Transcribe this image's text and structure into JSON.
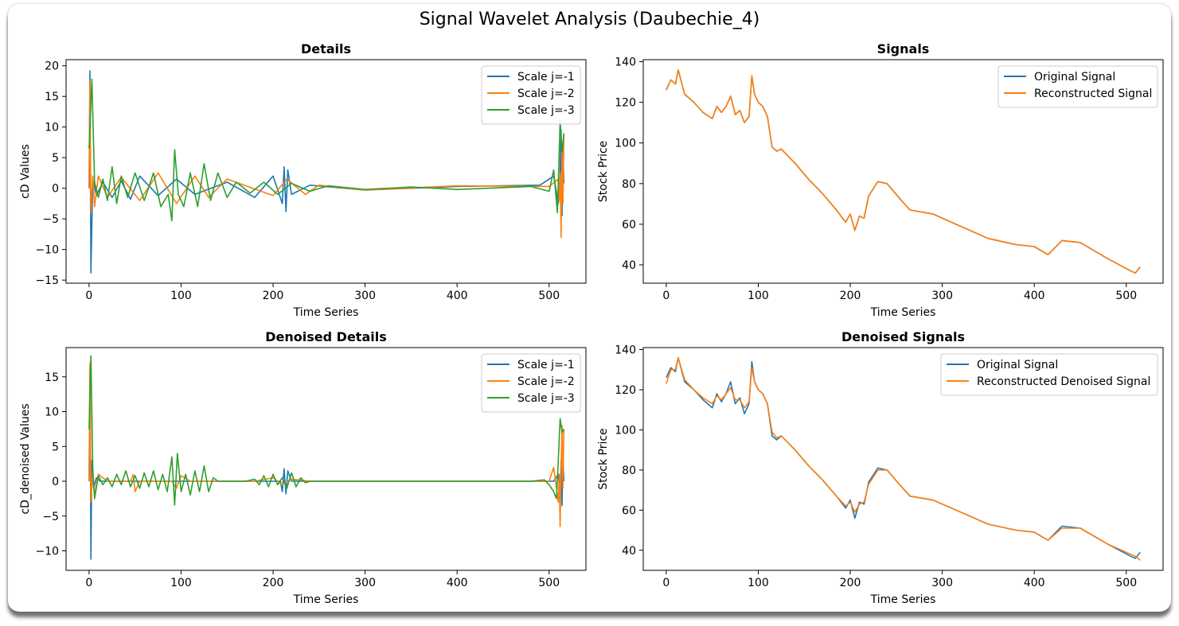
{
  "suptitle": "Signal Wavelet Analysis (Daubechie_4)",
  "colors": {
    "blue": "#1f77b4",
    "orange": "#ff7f0e",
    "green": "#2ca02c"
  },
  "chart_data": [
    {
      "type": "line",
      "title": "Details",
      "xlabel": "Time Series",
      "ylabel": "cD Values",
      "xlim": [
        -25,
        540
      ],
      "ylim": [
        -15.5,
        21.0
      ],
      "xticks": [
        0,
        100,
        200,
        300,
        400,
        500
      ],
      "yticks": [
        -15,
        -10,
        -5,
        0,
        5,
        10,
        15,
        20
      ],
      "ytick_labels": [
        "−15",
        "−10",
        "−5",
        "0",
        "5",
        "10",
        "15",
        "20"
      ],
      "legend_position": "top-right",
      "series": [
        {
          "name": "Scale j=-1",
          "color": "#1f77b4",
          "x": [
            0,
            1,
            2,
            4,
            8,
            15,
            25,
            35,
            45,
            55,
            75,
            95,
            115,
            150,
            180,
            200,
            210,
            212,
            214,
            216,
            220,
            240,
            300,
            400,
            490,
            505,
            510,
            512,
            513,
            514,
            515,
            516
          ],
          "y": [
            0,
            19.2,
            -13.8,
            1.5,
            -1.2,
            1.0,
            -1.5,
            1.2,
            -1.8,
            2.0,
            -1.2,
            1.5,
            -1.0,
            1.0,
            -1.5,
            2.0,
            -2.5,
            3.5,
            -3.8,
            3.0,
            -1.0,
            0.5,
            -0.3,
            0.3,
            0.5,
            2.0,
            -2.5,
            2.3,
            9.5,
            -4.5,
            7.0,
            0.8
          ]
        },
        {
          "name": "Scale j=-2",
          "color": "#ff7f0e",
          "x": [
            0,
            1,
            2,
            4,
            6,
            10,
            20,
            35,
            55,
            75,
            95,
            115,
            130,
            150,
            200,
            215,
            235,
            250,
            300,
            400,
            500,
            510,
            511,
            512,
            513,
            514,
            515,
            516
          ],
          "y": [
            0,
            17.5,
            -4.0,
            2.0,
            -3.0,
            2.0,
            -1.5,
            1.8,
            -2.0,
            2.5,
            -2.5,
            2.0,
            -1.5,
            1.5,
            -1.2,
            1.5,
            -1.0,
            0.5,
            -0.3,
            0.4,
            0.3,
            1.5,
            -2.0,
            2.5,
            -8.0,
            6.5,
            -2.5,
            8.8
          ]
        },
        {
          "name": "Scale j=-3",
          "color": "#2ca02c",
          "x": [
            0,
            3,
            6,
            10,
            15,
            20,
            25,
            30,
            35,
            42,
            50,
            60,
            70,
            78,
            86,
            90,
            93,
            97,
            103,
            110,
            118,
            125,
            132,
            140,
            150,
            160,
            175,
            190,
            205,
            220,
            240,
            260,
            300,
            350,
            400,
            480,
            500,
            505,
            509,
            512,
            514,
            516
          ],
          "y": [
            6.5,
            17.8,
            1.0,
            -1.5,
            1.5,
            -2.0,
            3.5,
            -2.5,
            2.0,
            -1.5,
            2.5,
            -2.0,
            2.5,
            -3.0,
            -1.0,
            -5.3,
            6.3,
            -1.0,
            -3.0,
            2.5,
            -3.0,
            4.0,
            -2.0,
            2.5,
            -1.5,
            1.0,
            -0.8,
            1.0,
            -1.0,
            0.8,
            -0.5,
            0.4,
            -0.2,
            0.2,
            -0.2,
            0.3,
            -0.5,
            3.0,
            -4.0,
            11.0,
            6.0,
            9.0
          ]
        }
      ]
    },
    {
      "type": "line",
      "title": "Signals",
      "xlabel": "Time Series",
      "ylabel": "Stock Price",
      "xlim": [
        -25,
        540
      ],
      "ylim": [
        31,
        141
      ],
      "xticks": [
        0,
        100,
        200,
        300,
        400,
        500
      ],
      "yticks": [
        40,
        60,
        80,
        100,
        120,
        140
      ],
      "ytick_labels": [
        "40",
        "60",
        "80",
        "100",
        "120",
        "140"
      ],
      "legend_position": "top-right",
      "series": [
        {
          "name": "Original Signal",
          "color": "#1f77b4",
          "x": [
            0,
            5,
            10,
            13,
            20,
            30,
            40,
            50,
            55,
            60,
            65,
            70,
            75,
            80,
            85,
            90,
            93,
            96,
            100,
            105,
            110,
            115,
            120,
            125,
            140,
            155,
            170,
            185,
            195,
            200,
            205,
            210,
            215,
            220,
            230,
            240,
            255,
            265,
            290,
            320,
            350,
            380,
            400,
            415,
            430,
            450,
            480,
            505,
            510,
            515
          ],
          "y": [
            126,
            131,
            129,
            136,
            124,
            120,
            115,
            112,
            118,
            115,
            118,
            123,
            114,
            116,
            110,
            113,
            133,
            124,
            120,
            118,
            113,
            98,
            96,
            97,
            90,
            82,
            75,
            67,
            61,
            65,
            57,
            64,
            63,
            74,
            81,
            80,
            72,
            67,
            65,
            59,
            53,
            50,
            49,
            45,
            52,
            51,
            43,
            37,
            36,
            39
          ]
        },
        {
          "name": "Reconstructed Signal",
          "color": "#ff7f0e",
          "x": [
            0,
            5,
            10,
            13,
            20,
            30,
            40,
            50,
            55,
            60,
            65,
            70,
            75,
            80,
            85,
            90,
            93,
            96,
            100,
            105,
            110,
            115,
            120,
            125,
            140,
            155,
            170,
            185,
            195,
            200,
            205,
            210,
            215,
            220,
            230,
            240,
            255,
            265,
            290,
            320,
            350,
            380,
            400,
            415,
            430,
            450,
            480,
            505,
            510,
            515
          ],
          "y": [
            126,
            131,
            129,
            136,
            124,
            120,
            115,
            112,
            118,
            115,
            118,
            123,
            114,
            116,
            110,
            113,
            133,
            124,
            120,
            118,
            113,
            98,
            96,
            97,
            90,
            82,
            75,
            67,
            61,
            65,
            57,
            64,
            63,
            74,
            81,
            80,
            72,
            67,
            65,
            59,
            53,
            50,
            49,
            45,
            52,
            51,
            43,
            37,
            36,
            39
          ]
        }
      ]
    },
    {
      "type": "line",
      "title": "Denoised Details",
      "xlabel": "Time Series",
      "ylabel": "cD_denoised Values",
      "xlim": [
        -25,
        540
      ],
      "ylim": [
        -12.8,
        19.2
      ],
      "xticks": [
        0,
        100,
        200,
        300,
        400,
        500
      ],
      "yticks": [
        -10,
        -5,
        0,
        5,
        10,
        15
      ],
      "ytick_labels": [
        "−10",
        "−5",
        "0",
        "5",
        "10",
        "15"
      ],
      "legend_position": "top-right",
      "series": [
        {
          "name": "Scale j=-1",
          "color": "#1f77b4",
          "x": [
            0,
            1,
            2,
            3,
            5,
            8,
            12,
            20,
            50,
            100,
            200,
            208,
            210,
            212,
            214,
            216,
            220,
            240,
            480,
            505,
            510,
            512,
            513,
            514,
            515,
            516
          ],
          "y": [
            0,
            16.3,
            -11.2,
            3.0,
            -1.0,
            0.5,
            0,
            0,
            0,
            0,
            0,
            0,
            -1.5,
            1.8,
            -1.8,
            1.5,
            0,
            0,
            0,
            0,
            1.0,
            -2.0,
            3.0,
            -3.5,
            4.0,
            0
          ]
        },
        {
          "name": "Scale j=-2",
          "color": "#ff7f0e",
          "x": [
            0,
            1,
            2,
            4,
            6,
            10,
            20,
            45,
            48,
            50,
            55,
            90,
            95,
            100,
            110,
            140,
            180,
            200,
            210,
            220,
            240,
            480,
            500,
            505,
            510,
            511,
            512,
            513,
            514,
            515,
            516
          ],
          "y": [
            0,
            17.0,
            -3.0,
            1.5,
            -2.0,
            1.0,
            0,
            0,
            1.0,
            -1.5,
            0,
            0,
            -1.0,
            0.8,
            0,
            0,
            0,
            0.5,
            -0.5,
            0.3,
            0,
            0,
            0,
            2.0,
            -3.0,
            1.0,
            -6.5,
            2.0,
            8.0,
            -1.0,
            7.5
          ]
        },
        {
          "name": "Scale j=-3",
          "color": "#2ca02c",
          "x": [
            0,
            2,
            4,
            6,
            10,
            15,
            20,
            25,
            30,
            35,
            40,
            45,
            50,
            55,
            60,
            65,
            70,
            75,
            80,
            85,
            90,
            93,
            96,
            100,
            105,
            110,
            115,
            120,
            125,
            130,
            135,
            140,
            170,
            180,
            185,
            190,
            195,
            200,
            205,
            210,
            215,
            220,
            225,
            230,
            235,
            240,
            480,
            495,
            500,
            505,
            508,
            510,
            512,
            514,
            516
          ],
          "y": [
            7.5,
            18.0,
            2.0,
            -2.5,
            0.8,
            -0.5,
            0.5,
            -0.8,
            1.0,
            -0.5,
            1.5,
            -0.8,
            0.8,
            -1.0,
            1.2,
            -0.8,
            1.5,
            -1.2,
            1.0,
            -1.5,
            3.5,
            -3.4,
            4.0,
            -1.5,
            1.0,
            -2.0,
            1.5,
            -1.5,
            2.2,
            -1.5,
            0.5,
            0,
            0,
            0.3,
            -0.5,
            0.8,
            -0.8,
            1.0,
            -0.5,
            0.5,
            -1.0,
            1.2,
            -0.8,
            0.5,
            -0.2,
            0,
            0,
            0.2,
            -0.5,
            -1.5,
            -2.5,
            3.0,
            9.0,
            7.0,
            7.5
          ]
        }
      ]
    },
    {
      "type": "line",
      "title": "Denoised Signals",
      "xlabel": "Time Series",
      "ylabel": "Stock Price",
      "xlim": [
        -25,
        540
      ],
      "ylim": [
        30,
        141
      ],
      "xticks": [
        0,
        100,
        200,
        300,
        400,
        500
      ],
      "yticks": [
        40,
        60,
        80,
        100,
        120,
        140
      ],
      "ytick_labels": [
        "40",
        "60",
        "80",
        "100",
        "120",
        "140"
      ],
      "legend_position": "top-right",
      "series": [
        {
          "name": "Original Signal",
          "color": "#1f77b4",
          "x": [
            0,
            5,
            10,
            13,
            20,
            30,
            40,
            50,
            55,
            60,
            65,
            70,
            75,
            80,
            85,
            90,
            93,
            96,
            100,
            105,
            110,
            115,
            120,
            125,
            140,
            155,
            170,
            185,
            195,
            200,
            205,
            210,
            215,
            220,
            230,
            240,
            255,
            265,
            290,
            320,
            350,
            380,
            400,
            415,
            430,
            450,
            480,
            505,
            510,
            515
          ],
          "y": [
            126,
            131,
            129,
            136,
            124,
            120,
            115,
            111,
            118,
            114,
            118,
            124,
            113,
            116,
            108,
            113,
            134,
            124,
            120,
            118,
            113,
            97,
            95,
            97,
            90,
            82,
            75,
            67,
            61,
            65,
            56,
            64,
            63,
            74,
            81,
            80,
            72,
            67,
            65,
            59,
            53,
            50,
            49,
            45,
            52,
            51,
            43,
            37,
            36,
            39
          ]
        },
        {
          "name": "Reconstructed Denoised Signal",
          "color": "#ff7f0e",
          "x": [
            0,
            5,
            10,
            13,
            20,
            30,
            40,
            50,
            55,
            60,
            65,
            70,
            75,
            80,
            85,
            90,
            93,
            96,
            100,
            105,
            110,
            115,
            120,
            125,
            140,
            155,
            170,
            185,
            195,
            200,
            205,
            210,
            215,
            220,
            230,
            240,
            255,
            265,
            290,
            320,
            350,
            380,
            400,
            415,
            430,
            450,
            480,
            505,
            510,
            515
          ],
          "y": [
            123,
            130,
            130,
            136,
            125,
            120,
            116,
            113,
            117,
            115,
            118,
            121,
            115,
            115,
            111,
            114,
            131,
            124,
            120,
            118,
            113,
            99,
            96,
            97,
            90,
            82,
            75,
            67,
            62,
            64,
            59,
            63,
            64,
            73,
            80,
            80,
            72,
            67,
            65,
            59,
            53,
            50,
            49,
            45,
            51,
            51,
            43,
            38,
            37,
            35
          ]
        }
      ]
    }
  ]
}
